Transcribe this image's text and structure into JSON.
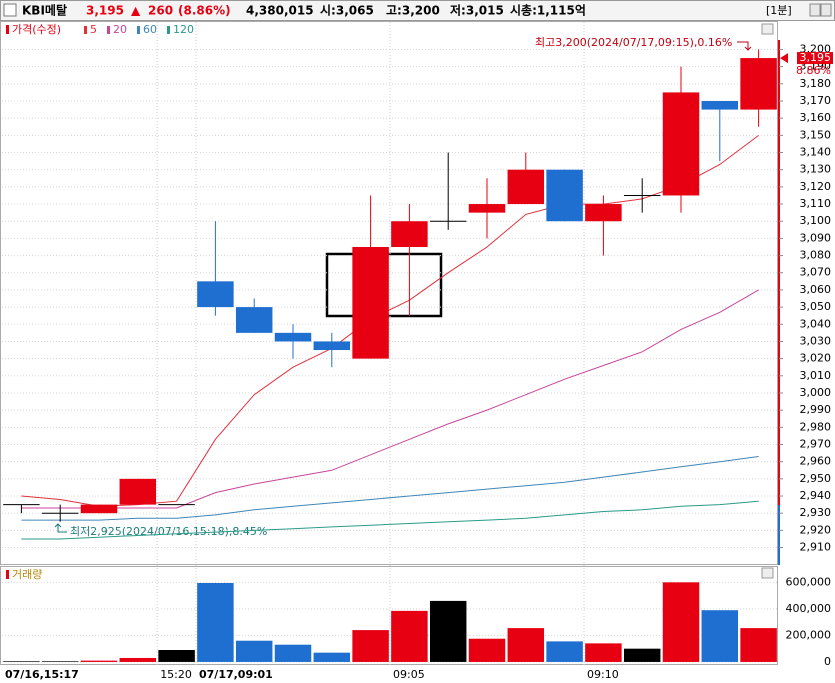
{
  "header": {
    "name": "KBI메탈",
    "price": "3,195",
    "arrow": "▲",
    "change": "260",
    "change_pct": "(8.86%)",
    "volume": "4,380,015",
    "open": "시:3,065",
    "high": "고:3,200",
    "low": "저:3,015",
    "market_cap": "시총:1,115억",
    "interval": "[1분]"
  },
  "chart_data": [
    {
      "type": "candlestick",
      "legend_title": "가격(수정)",
      "categories": [
        "07/16,15:17",
        null,
        null,
        null,
        "15:20",
        "07/17,09:01",
        null,
        null,
        null,
        null,
        "09:05",
        null,
        null,
        null,
        null,
        "09:10",
        null,
        null,
        null,
        null
      ],
      "open": [
        2935,
        2930,
        2930,
        2935,
        2935,
        3065,
        3050,
        3035,
        3030,
        3020,
        3085,
        3100,
        3105,
        3110,
        3130,
        3100,
        3115,
        3115,
        3170,
        3165
      ],
      "high": [
        2935,
        2935,
        2935,
        2950,
        2935,
        3100,
        3055,
        3040,
        3035,
        3115,
        3110,
        3140,
        3125,
        3140,
        3130,
        3115,
        3125,
        3190,
        3170,
        3200
      ],
      "low": [
        2930,
        2925,
        2930,
        2935,
        2935,
        3045,
        3035,
        3020,
        3015,
        3020,
        3045,
        3095,
        3090,
        3110,
        3100,
        3080,
        3105,
        3105,
        3135,
        3155
      ],
      "close": [
        2935,
        2930,
        2935,
        2950,
        2935,
        3050,
        3035,
        3030,
        3025,
        3085,
        3100,
        3100,
        3110,
        3130,
        3100,
        3110,
        3115,
        3175,
        3165,
        3195
      ],
      "up_color": "#e60012",
      "down_color": "#1f6fd1",
      "flat_color": "#000000",
      "moving_averages": [
        {
          "name": "5",
          "color": "#e0303a",
          "values": [
            2940,
            2938,
            2934,
            2935,
            2937,
            2973,
            2999,
            3015,
            3026,
            3043,
            3054,
            3070,
            3085,
            3104,
            3110,
            3110,
            3113,
            3121,
            3133,
            3150
          ]
        },
        {
          "name": "20",
          "color": "#c8469a",
          "values": [
            2933,
            2933,
            2933,
            2933,
            2933,
            2942,
            2947,
            2951,
            2955,
            2964,
            2973,
            2982,
            2990,
            2999,
            3008,
            3016,
            3024,
            3037,
            3047,
            3060
          ]
        },
        {
          "name": "60",
          "color": "#3f86b8",
          "values": [
            2926,
            2926,
            2926,
            2927,
            2927,
            2929,
            2932,
            2934,
            2936,
            2938,
            2940,
            2942,
            2944,
            2946,
            2948,
            2951,
            2954,
            2957,
            2960,
            2963
          ]
        },
        {
          "name": "120",
          "color": "#2a9a8a",
          "values": [
            2915,
            2915,
            2916,
            2917,
            2918,
            2919,
            2920,
            2921,
            2922,
            2923,
            2924,
            2925,
            2926,
            2927,
            2929,
            2931,
            2932,
            2934,
            2935,
            2937
          ]
        }
      ],
      "ylim": [
        2901,
        3216
      ],
      "yticks": [
        {
          "value": 2910,
          "label": "2,910"
        },
        {
          "value": 2920,
          "label": "2,920"
        },
        {
          "value": 2930,
          "label": "2,930"
        },
        {
          "value": 2940,
          "label": "2,940"
        },
        {
          "value": 2950,
          "label": "2,950"
        },
        {
          "value": 2960,
          "label": "2,960"
        },
        {
          "value": 2970,
          "label": "2,970"
        },
        {
          "value": 2980,
          "label": "2,980"
        },
        {
          "value": 2990,
          "label": "2,990"
        },
        {
          "value": 3000,
          "label": "3,000"
        },
        {
          "value": 3010,
          "label": "3,010"
        },
        {
          "value": 3020,
          "label": "3,020"
        },
        {
          "value": 3030,
          "label": "3,030"
        },
        {
          "value": 3040,
          "label": "3,040"
        },
        {
          "value": 3050,
          "label": "3,050"
        },
        {
          "value": 3060,
          "label": "3,060"
        },
        {
          "value": 3070,
          "label": "3,070"
        },
        {
          "value": 3080,
          "label": "3,080"
        },
        {
          "value": 3090,
          "label": "3,090"
        },
        {
          "value": 3100,
          "label": "3,100"
        },
        {
          "value": 3110,
          "label": "3,110"
        },
        {
          "value": 3120,
          "label": "3,120"
        },
        {
          "value": 3130,
          "label": "3,130"
        },
        {
          "value": 3140,
          "label": "3,140"
        },
        {
          "value": 3150,
          "label": "3,150"
        },
        {
          "value": 3160,
          "label": "3,160"
        },
        {
          "value": 3170,
          "label": "3,170"
        },
        {
          "value": 3180,
          "label": "3,180"
        },
        {
          "value": 3190,
          "label": "3,190"
        },
        {
          "value": 3200,
          "label": "3,200"
        }
      ],
      "last_price": {
        "value": 3195,
        "label": "3,195"
      },
      "change_label": "8.86%",
      "annotations": [
        "최고3,200(2024/07/17,09:15),0.16%",
        "최저2,925(2024/07/16,15:18),8.45%"
      ]
    },
    {
      "type": "bar",
      "title": "거래량",
      "values": [
        5000,
        5000,
        10000,
        30000,
        90000,
        595000,
        160000,
        130000,
        70000,
        240000,
        385000,
        460000,
        175000,
        255000,
        155000,
        140000,
        100000,
        600000,
        390000,
        255000
      ],
      "ylim": [
        -23000,
        708000
      ],
      "yticks": [
        0,
        {
          "value": 200000,
          "label": "200,000"
        },
        {
          "value": 400000,
          "label": "400,000"
        },
        {
          "value": 600000,
          "label": "600,000"
        }
      ]
    }
  ]
}
